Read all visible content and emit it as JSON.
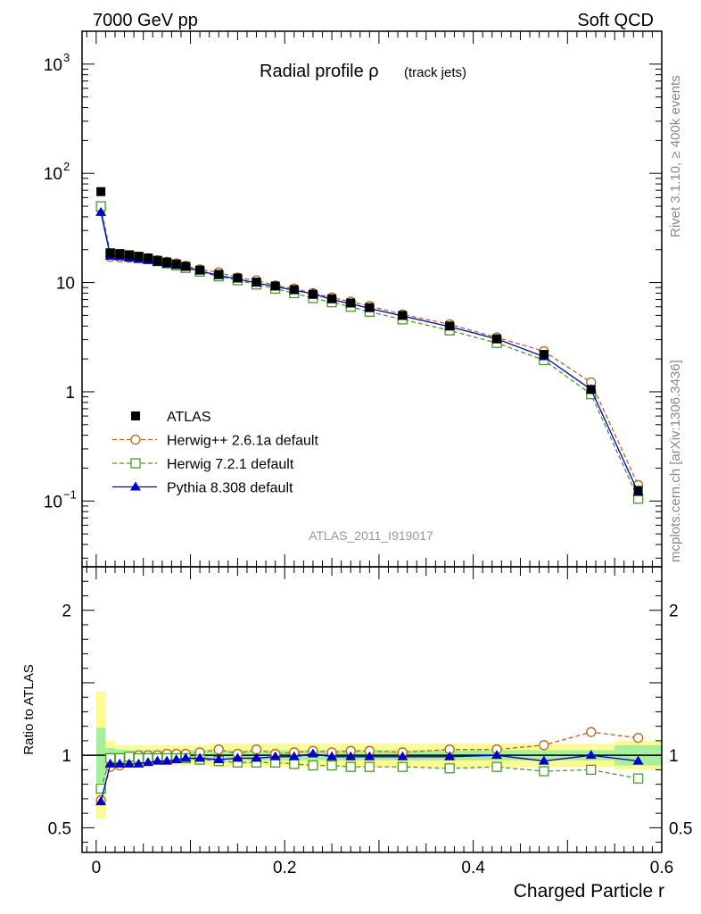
{
  "header": {
    "left": "7000 GeV pp",
    "right": "Soft QCD",
    "side_top": "Rivet 3.1.10, ≥ 400k events",
    "side_bottom": "mcplots.cern.ch [arXiv:1306.3436]"
  },
  "chart_data": [
    {
      "type": "line",
      "scale": "log",
      "title_main": "Radial profile ρ",
      "title_sub": "(track jets)",
      "watermark": "ATLAS_2011_I919017",
      "xlim": [
        -0.015,
        0.6
      ],
      "ylim": [
        0.025,
        2000
      ],
      "y_ticks": [
        {
          "v": 0.1,
          "base": "10",
          "exp": "−1"
        },
        {
          "v": 1,
          "label": "1"
        },
        {
          "v": 10,
          "label": "10"
        },
        {
          "v": 100,
          "base": "10",
          "exp": "2"
        },
        {
          "v": 1000,
          "base": "10",
          "exp": "3"
        }
      ],
      "x": [
        0.005,
        0.015,
        0.025,
        0.035,
        0.045,
        0.055,
        0.065,
        0.075,
        0.085,
        0.095,
        0.11,
        0.13,
        0.15,
        0.17,
        0.19,
        0.21,
        0.23,
        0.25,
        0.27,
        0.29,
        0.325,
        0.375,
        0.425,
        0.475,
        0.525,
        0.575
      ],
      "legend": [
        {
          "name": "ATLAS",
          "color": "#000000",
          "marker": "square-filled"
        },
        {
          "name": "Herwig++ 2.6.1a default",
          "color": "#b8651e",
          "marker": "circle-open",
          "dash": "dashed"
        },
        {
          "name": "Herwig 7.2.1 default",
          "color": "#4a9a2a",
          "marker": "square-open",
          "dash": "dashed"
        },
        {
          "name": "Pythia 8.308 default",
          "color": "#0000cc",
          "marker": "triangle-filled",
          "dash": "solid"
        }
      ],
      "series": [
        {
          "name": "ATLAS",
          "values": [
            68,
            18.7,
            18.4,
            17.9,
            17.4,
            16.8,
            16.0,
            15.4,
            14.8,
            14.1,
            13.0,
            11.9,
            11.0,
            10.1,
            9.3,
            8.6,
            7.8,
            7.1,
            6.5,
            5.9,
            5.0,
            4.0,
            3.05,
            2.2,
            1.05,
            0.125
          ]
        },
        {
          "name": "Herwig++ 2.6.1a default",
          "values": [
            47,
            17.2,
            17.0,
            16.9,
            17.0,
            16.7,
            16.0,
            15.5,
            15.0,
            14.2,
            13.2,
            12.4,
            11.1,
            10.5,
            9.4,
            8.8,
            8.0,
            7.3,
            6.7,
            6.1,
            5.1,
            4.15,
            3.15,
            2.35,
            1.22,
            0.14
          ]
        },
        {
          "name": "Herwig 7.2.1 default",
          "values": [
            50,
            18.5,
            18.2,
            17.8,
            17.2,
            16.5,
            15.7,
            15.0,
            14.4,
            13.6,
            12.6,
            11.4,
            10.5,
            9.6,
            8.8,
            8.0,
            7.2,
            6.6,
            6.0,
            5.4,
            4.6,
            3.65,
            2.8,
            1.95,
            0.95,
            0.105
          ]
        },
        {
          "name": "Pythia 8.308 default",
          "values": [
            44,
            17.5,
            17.3,
            16.8,
            16.3,
            15.9,
            15.3,
            14.8,
            14.4,
            13.8,
            12.8,
            11.6,
            10.8,
            9.9,
            9.2,
            8.5,
            7.9,
            7.0,
            6.4,
            5.8,
            4.95,
            3.95,
            3.05,
            2.1,
            1.05,
            0.12
          ]
        }
      ]
    },
    {
      "type": "line",
      "ylabel": "Ratio to ATLAS",
      "xlabel": "Charged Particle r",
      "xlim": [
        -0.015,
        0.6
      ],
      "ylim": [
        0.33,
        2.3
      ],
      "x_ticks": [
        {
          "v": 0,
          "label": "0"
        },
        {
          "v": 0.2,
          "label": "0.2"
        },
        {
          "v": 0.4,
          "label": "0.4"
        },
        {
          "v": 0.6,
          "label": "0.6"
        }
      ],
      "y_ticks": [
        {
          "v": 0.5,
          "label": "0.5"
        },
        {
          "v": 1,
          "label": "1"
        },
        {
          "v": 2,
          "label": "2"
        }
      ],
      "x": [
        0.005,
        0.015,
        0.025,
        0.035,
        0.045,
        0.055,
        0.065,
        0.075,
        0.085,
        0.095,
        0.11,
        0.13,
        0.15,
        0.17,
        0.19,
        0.21,
        0.23,
        0.25,
        0.27,
        0.29,
        0.325,
        0.375,
        0.425,
        0.475,
        0.525,
        0.575
      ],
      "bin_edges": [
        0,
        0.01,
        0.02,
        0.03,
        0.04,
        0.05,
        0.06,
        0.07,
        0.08,
        0.09,
        0.1,
        0.12,
        0.14,
        0.16,
        0.18,
        0.2,
        0.22,
        0.24,
        0.26,
        0.28,
        0.3,
        0.35,
        0.4,
        0.45,
        0.5,
        0.55,
        0.6
      ],
      "band_stat": [
        0.19,
        0.05,
        0.04,
        0.035,
        0.035,
        0.035,
        0.035,
        0.035,
        0.035,
        0.035,
        0.035,
        0.035,
        0.035,
        0.035,
        0.035,
        0.035,
        0.035,
        0.035,
        0.035,
        0.035,
        0.035,
        0.035,
        0.035,
        0.035,
        0.035,
        0.07
      ],
      "band_syst": [
        0.44,
        0.1,
        0.07,
        0.07,
        0.07,
        0.07,
        0.07,
        0.07,
        0.07,
        0.07,
        0.07,
        0.08,
        0.08,
        0.08,
        0.08,
        0.08,
        0.08,
        0.08,
        0.08,
        0.08,
        0.08,
        0.08,
        0.08,
        0.08,
        0.08,
        0.1
      ],
      "band_colors": {
        "stat": "#a6ef9e",
        "syst": "#fbfb92"
      },
      "series": [
        {
          "name": "Herwig++ 2.6.1a default",
          "values": [
            0.69,
            0.92,
            0.93,
            0.98,
            1.0,
            1.0,
            1.0,
            1.01,
            1.01,
            1.01,
            1.02,
            1.04,
            1.01,
            1.04,
            1.01,
            1.02,
            1.03,
            1.02,
            1.03,
            1.03,
            1.02,
            1.04,
            1.04,
            1.07,
            1.16,
            1.12
          ]
        },
        {
          "name": "Herwig 7.2.1 default",
          "values": [
            0.77,
            0.98,
            0.98,
            0.99,
            0.98,
            0.98,
            0.98,
            0.98,
            0.98,
            0.98,
            0.97,
            0.96,
            0.95,
            0.95,
            0.95,
            0.94,
            0.93,
            0.93,
            0.92,
            0.92,
            0.92,
            0.91,
            0.92,
            0.89,
            0.9,
            0.84
          ]
        },
        {
          "name": "Pythia 8.308 default",
          "values": [
            0.68,
            0.94,
            0.94,
            0.94,
            0.94,
            0.95,
            0.96,
            0.96,
            0.97,
            0.98,
            0.98,
            0.97,
            0.98,
            0.98,
            0.99,
            0.99,
            1.01,
            0.99,
            0.99,
            0.99,
            0.99,
            0.99,
            1.0,
            0.96,
            1.0,
            0.96
          ]
        }
      ]
    }
  ]
}
